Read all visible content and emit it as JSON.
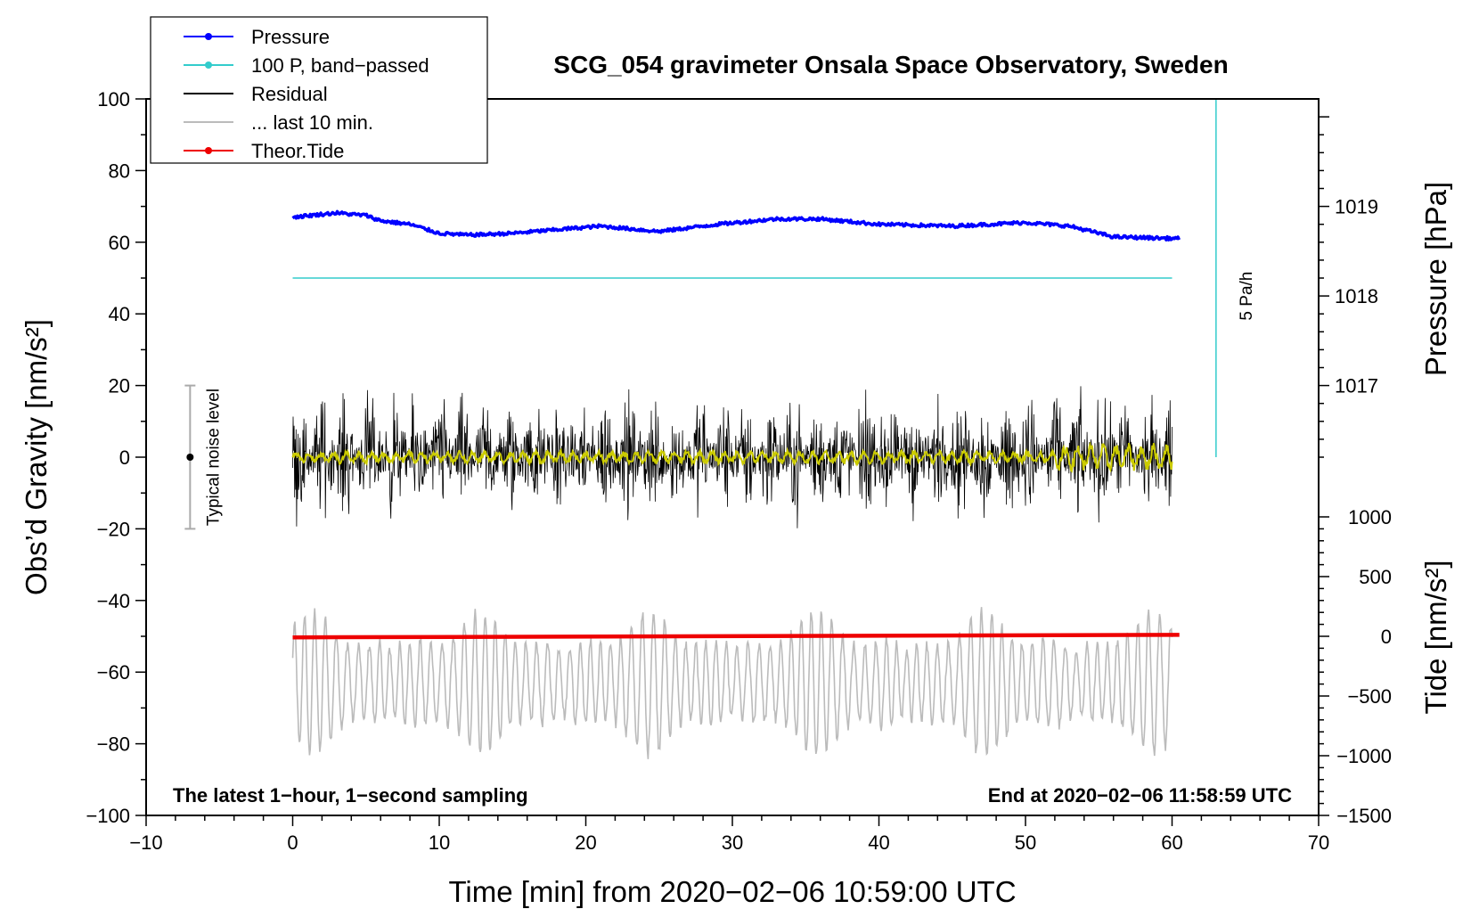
{
  "chart_data": {
    "type": "line",
    "title": "SCG_054 gravimeter Onsala Space Observatory, Sweden",
    "xlabel": "Time [min] from 2020−02−06 10:59:00 UTC",
    "ylabel": "Obs’d Gravity [nm/s²]",
    "ylabel_right_pressure": "Pressure [hPa]",
    "ylabel_right_tide": "Tide [nm/s²]",
    "xlim": [
      -10,
      70
    ],
    "ylim": [
      -100,
      100
    ],
    "xticks": [
      -10,
      0,
      10,
      20,
      30,
      40,
      50,
      60,
      70
    ],
    "xtick_labels": [
      "−10",
      "0",
      "10",
      "20",
      "30",
      "40",
      "50",
      "60",
      "70"
    ],
    "yticks": [
      -100,
      -80,
      -60,
      -40,
      -20,
      0,
      20,
      40,
      60,
      80,
      100
    ],
    "ytick_labels": [
      "−100",
      "−80",
      "−60",
      "−40",
      "−20",
      "0",
      "20",
      "40",
      "60",
      "80",
      "100"
    ],
    "pressure_axis": {
      "ticks": [
        1017,
        1018,
        1019
      ],
      "tick_labels": [
        "1017",
        "1018",
        "1019"
      ],
      "maps_to_gravity": [
        20,
        45,
        70
      ]
    },
    "tide_axis": {
      "ticks": [
        -1500,
        -1000,
        -500,
        0,
        500,
        1000
      ],
      "tick_labels": [
        "−1500",
        "−1000",
        "−500",
        "0",
        "500",
        "1000"
      ],
      "maps_to_gravity": [
        -100,
        -83.3,
        -66.7,
        -50,
        -33.3,
        -16.7
      ]
    },
    "legend": [
      {
        "label": "Pressure",
        "color": "#0000ff",
        "marker": true
      },
      {
        "label": "100 P, band−passed",
        "color": "#33cccc",
        "marker": true
      },
      {
        "label": "Residual",
        "color": "#000000",
        "marker": false
      },
      {
        "label": "... last 10 min.",
        "color": "#bbbbbb",
        "marker": false
      },
      {
        "label": "Theor.Tide",
        "color": "#ee0000",
        "marker": true
      }
    ],
    "series": [
      {
        "name": "Pressure",
        "color": "#0000ff",
        "x": [
          0,
          2,
          3,
          4,
          5,
          6,
          8,
          10,
          12,
          15,
          18,
          21,
          25,
          29,
          33,
          36,
          40,
          45,
          50,
          53,
          56,
          60.5
        ],
        "y": [
          67,
          67.8,
          68.2,
          67.8,
          67.5,
          66,
          65,
          62.5,
          62,
          62.5,
          63.5,
          64.5,
          63,
          65,
          66.5,
          66.5,
          65,
          64.5,
          65.5,
          64.5,
          61.5,
          61
        ]
      },
      {
        "name": "100 P, band−passed",
        "color": "#33cccc",
        "x": [
          0,
          60
        ],
        "y": [
          50,
          50
        ]
      },
      {
        "name": "Residual",
        "color": "#000000",
        "x_range": [
          0,
          60
        ],
        "amplitude": 25,
        "samples": 3600
      },
      {
        "name": "Residual (smoothed)",
        "color": "#cccc00",
        "x_range": [
          0,
          60
        ],
        "amplitude": 2
      },
      {
        "name": "... last 10 min.",
        "color": "#bbbbbb",
        "x_range": [
          0,
          60
        ],
        "center": -63,
        "amplitude": 20
      },
      {
        "name": "Theor.Tide",
        "color": "#ee0000",
        "x": [
          0,
          60.5
        ],
        "y": [
          -50.3,
          -49.6
        ]
      }
    ],
    "noise_bar": {
      "x": -7,
      "y": 0,
      "low": -20,
      "high": 20,
      "label": "Typical noise level"
    },
    "rate_bar": {
      "x": 63,
      "y_low": 0,
      "y_high": 100,
      "label": "5 Pa/h"
    },
    "annotations": {
      "bottom_left": "The latest 1−hour, 1−second sampling",
      "bottom_right": "End at 2020−02−06 11:58:59 UTC"
    }
  }
}
